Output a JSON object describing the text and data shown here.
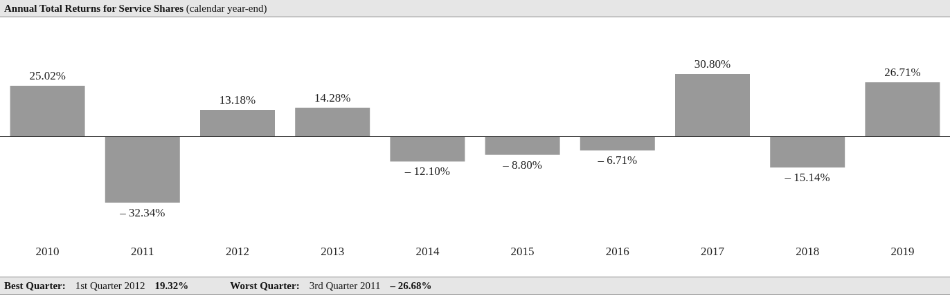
{
  "chart_data": {
    "type": "bar",
    "title": "Annual Total Returns for Service Shares",
    "subtitle": "(calendar year-end)",
    "categories": [
      "2010",
      "2011",
      "2012",
      "2013",
      "2014",
      "2015",
      "2016",
      "2017",
      "2018",
      "2019"
    ],
    "values": [
      25.02,
      -32.34,
      13.18,
      14.28,
      -12.1,
      -8.8,
      -6.71,
      30.8,
      -15.14,
      26.71
    ],
    "value_labels": [
      "25.02%",
      "– 32.34%",
      "13.18%",
      "14.28%",
      "– 12.10%",
      "– 8.80%",
      "– 6.71%",
      "30.80%",
      "– 15.14%",
      "26.71%"
    ],
    "color": "#999999",
    "ref_lines": [
      {
        "axis": "y",
        "value": 0,
        "color": "#333333"
      }
    ],
    "tick_labels": "x",
    "annotations": [
      "Best Quarter:",
      "1st Quarter 2012",
      "19.32%",
      "Worst Quarter:",
      "3rd Quarter 2011",
      "– 26.68%"
    ]
  }
}
